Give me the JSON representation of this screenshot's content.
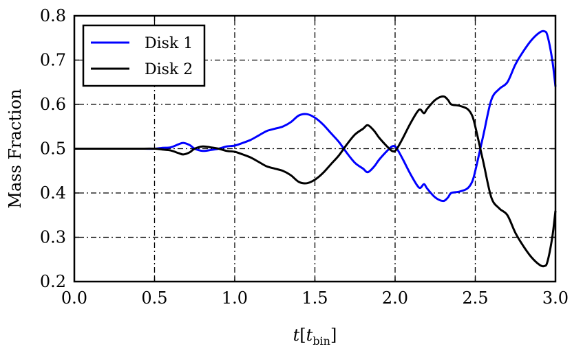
{
  "chart_data": {
    "type": "line",
    "xlabel": "t[t_bin]",
    "xlabel_parts": {
      "main": "t",
      "sub": "bin"
    },
    "ylabel": "Mass Fraction",
    "xlim": [
      0.0,
      3.0
    ],
    "ylim": [
      0.2,
      0.8
    ],
    "xticks": [
      "0.0",
      "0.5",
      "1.0",
      "1.5",
      "2.0",
      "2.5",
      "3.0"
    ],
    "yticks": [
      "0.2",
      "0.3",
      "0.4",
      "0.5",
      "0.6",
      "0.7",
      "0.8"
    ],
    "grid": true,
    "legend_position": "top-left",
    "x": [
      0.0,
      0.1,
      0.2,
      0.3,
      0.4,
      0.5,
      0.55,
      0.6,
      0.65,
      0.68,
      0.72,
      0.75,
      0.8,
      0.85,
      0.9,
      0.95,
      1.0,
      1.05,
      1.1,
      1.15,
      1.2,
      1.25,
      1.3,
      1.35,
      1.4,
      1.45,
      1.5,
      1.55,
      1.6,
      1.65,
      1.7,
      1.75,
      1.8,
      1.83,
      1.87,
      1.9,
      1.95,
      1.98,
      2.0,
      2.02,
      2.05,
      2.1,
      2.15,
      2.18,
      2.2,
      2.25,
      2.3,
      2.33,
      2.35,
      2.4,
      2.45,
      2.48,
      2.5,
      2.55,
      2.6,
      2.65,
      2.7,
      2.75,
      2.8,
      2.85,
      2.9,
      2.93,
      2.95,
      2.98,
      3.0
    ],
    "series": [
      {
        "name": "Disk 1",
        "color": "#0000ff",
        "values": [
          0.5,
          0.5,
          0.5,
          0.5,
          0.5,
          0.5,
          0.502,
          0.503,
          0.51,
          0.513,
          0.508,
          0.5,
          0.495,
          0.497,
          0.5,
          0.505,
          0.507,
          0.513,
          0.52,
          0.53,
          0.54,
          0.545,
          0.55,
          0.56,
          0.575,
          0.578,
          0.57,
          0.555,
          0.535,
          0.515,
          0.49,
          0.468,
          0.455,
          0.447,
          0.46,
          0.475,
          0.495,
          0.505,
          0.505,
          0.495,
          0.475,
          0.44,
          0.412,
          0.42,
          0.41,
          0.39,
          0.382,
          0.39,
          0.4,
          0.403,
          0.41,
          0.425,
          0.45,
          0.53,
          0.61,
          0.635,
          0.65,
          0.69,
          0.72,
          0.745,
          0.762,
          0.765,
          0.755,
          0.7,
          0.64
        ]
      },
      {
        "name": "Disk 2",
        "color": "#000000",
        "values": [
          0.5,
          0.5,
          0.5,
          0.5,
          0.5,
          0.5,
          0.498,
          0.496,
          0.49,
          0.487,
          0.492,
          0.5,
          0.505,
          0.503,
          0.5,
          0.495,
          0.493,
          0.487,
          0.48,
          0.47,
          0.46,
          0.455,
          0.45,
          0.44,
          0.425,
          0.422,
          0.43,
          0.445,
          0.465,
          0.485,
          0.51,
          0.532,
          0.545,
          0.553,
          0.54,
          0.525,
          0.505,
          0.495,
          0.495,
          0.505,
          0.525,
          0.56,
          0.588,
          0.58,
          0.59,
          0.61,
          0.618,
          0.61,
          0.6,
          0.597,
          0.59,
          0.575,
          0.55,
          0.47,
          0.39,
          0.365,
          0.35,
          0.31,
          0.28,
          0.255,
          0.238,
          0.235,
          0.245,
          0.3,
          0.36
        ]
      }
    ]
  }
}
